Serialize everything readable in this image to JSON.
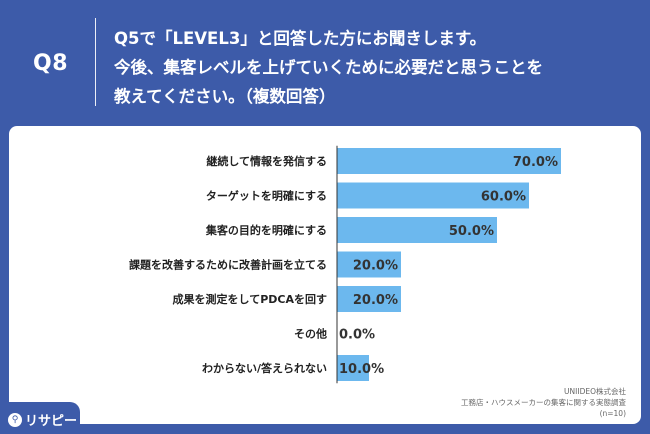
{
  "header": {
    "q_label": "Q8",
    "question_lines": [
      "Q5で「LEVEL3」と回答した方にお聞きします。",
      "今後、集客レベルを上げていくために必要だと思うことを",
      "教えてください。（複数回答）"
    ]
  },
  "colors": {
    "background": "#3d5ba9",
    "bar": "#6cb8ee",
    "panel": "#ffffff"
  },
  "chart_data": {
    "type": "bar",
    "orientation": "horizontal",
    "categories": [
      "継続して情報を発信する",
      "ターゲットを明確にする",
      "集客の目的を明確にする",
      "課題を改善するために改善計画を立てる",
      "成果を測定をしてPDCAを回す",
      "その他",
      "わからない/答えられない"
    ],
    "values": [
      70.0,
      60.0,
      50.0,
      20.0,
      20.0,
      0.0,
      10.0
    ],
    "value_labels": [
      "70.0%",
      "60.0%",
      "50.0%",
      "20.0%",
      "20.0%",
      "0.0%",
      "10.0%"
    ],
    "xlim": [
      0,
      100
    ]
  },
  "source": {
    "lines": [
      "UNIIDEO株式会社",
      "工務店・ハウスメーカーの集客に関する実態調査",
      "(n=10)"
    ]
  },
  "logo": {
    "icon": "search-icon",
    "text": "リサピー"
  }
}
